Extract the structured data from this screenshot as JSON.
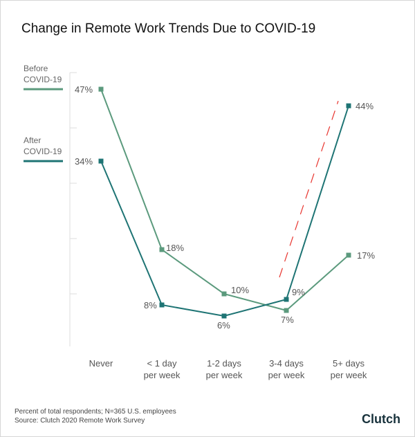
{
  "title": "Change in Remote Work Trends Due to COVID-19",
  "footnote": [
    "Percent of total respondents; N=365 U.S. employees",
    "Source: Clutch 2020 Remote Work Survey"
  ],
  "logo": "Clutch",
  "chart_data": {
    "type": "line",
    "title": "Change in Remote Work Trends Due to COVID-19",
    "categories": [
      "Never",
      "< 1 day per week",
      "1-2 days per week",
      "3-4 days per week",
      "5+ days per week"
    ],
    "category_lines": [
      [
        "Never"
      ],
      [
        "< 1 day",
        "per week"
      ],
      [
        "1-2 days",
        "per week"
      ],
      [
        "3-4 days",
        "per week"
      ],
      [
        "5+ days",
        "per week"
      ]
    ],
    "ylim": [
      0,
      50
    ],
    "legend_placement": "left",
    "series": [
      {
        "name": "Before COVID-19",
        "name_lines": [
          "Before",
          "COVID-19"
        ],
        "color": "#5b9a7d",
        "values": [
          47,
          18,
          10,
          7,
          17
        ],
        "labels": [
          "47%",
          "18%",
          "10%",
          "7%",
          "17%"
        ]
      },
      {
        "name": "After COVID-19",
        "name_lines": [
          "After",
          "COVID-19"
        ],
        "color": "#1e7474",
        "values": [
          34,
          8,
          6,
          9,
          44
        ],
        "labels": [
          "34%",
          "8%",
          "6%",
          "9%",
          "44%"
        ]
      }
    ],
    "annotation": {
      "type": "dashed-trend-arrow",
      "color": "#e8332d"
    }
  }
}
